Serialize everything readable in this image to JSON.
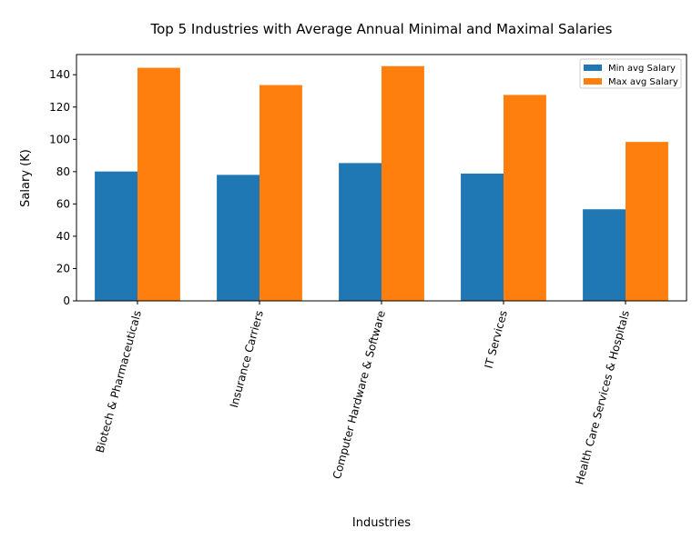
{
  "chart_data": {
    "type": "bar",
    "title": "Top 5 Industries with Average Annual Minimal and Maximal Salaries",
    "xlabel": "Industries",
    "ylabel": "Salary (K)",
    "categories": [
      "Biotech & Pharmaceuticals",
      "Insurance Carriers",
      "Computer Hardware & Software",
      "IT Services",
      "Health Care Services & Hospitals"
    ],
    "series": [
      {
        "name": "Min avg Salary",
        "color": "#1f77b4",
        "values": [
          80.1,
          78.0,
          85.3,
          78.8,
          56.7
        ]
      },
      {
        "name": "Max avg Salary",
        "color": "#ff7f0e",
        "values": [
          144.3,
          133.6,
          145.3,
          127.5,
          98.4
        ]
      }
    ],
    "ylim": [
      0,
      152.5
    ],
    "yticks": [
      0,
      20,
      40,
      60,
      80,
      100,
      120,
      140
    ],
    "grid": false,
    "legend_position": "top-right"
  }
}
